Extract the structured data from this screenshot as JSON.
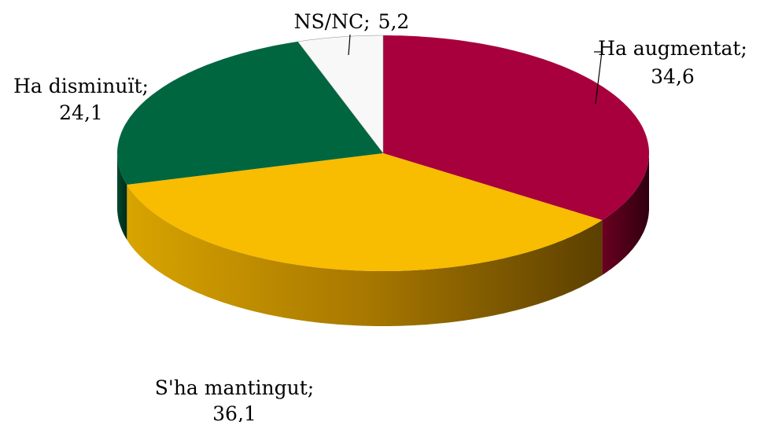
{
  "chart_data": {
    "type": "pie3d",
    "categories": [
      "Ha augmentat",
      "S'ha mantingut",
      "Ha disminuït",
      "NS/NC"
    ],
    "values": [
      34.6,
      36.1,
      24.1,
      5.2
    ],
    "value_labels": [
      "34,6",
      "36,1",
      "24,1",
      "5,2"
    ],
    "label_separator": ";",
    "colors": [
      "#a8003c",
      "#f8bc00",
      "#006640",
      "#f8f8f8"
    ]
  }
}
